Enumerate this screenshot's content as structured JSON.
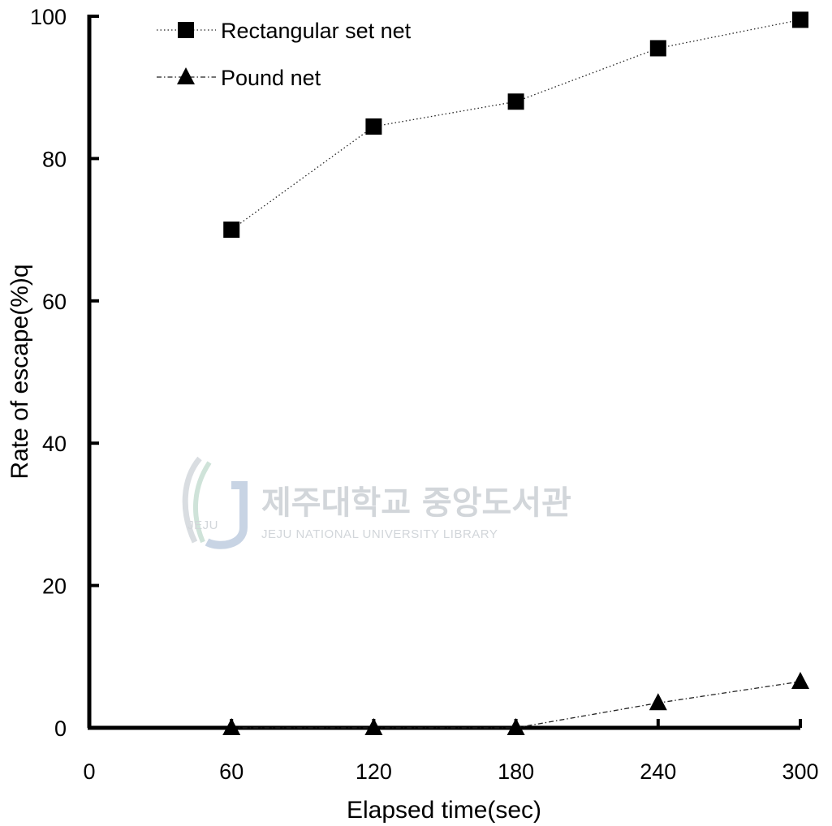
{
  "chart_data": {
    "type": "line",
    "xlabel": "Elapsed time(sec)",
    "ylabel": "Rate of escape(%)q",
    "x": [
      60,
      120,
      180,
      240,
      300
    ],
    "x_ticks": [
      "0",
      "60",
      "120",
      "180",
      "240",
      "300"
    ],
    "y_ticks": [
      "0",
      "20",
      "40",
      "60",
      "80",
      "100"
    ],
    "xlim": [
      0,
      300
    ],
    "ylim": [
      0,
      100
    ],
    "grid": false,
    "legend_position": "top-left",
    "series": [
      {
        "name": "Rectangular set net",
        "marker": "square",
        "line_style": "dotted",
        "values": [
          70,
          84.5,
          88,
          95.5,
          99.5
        ]
      },
      {
        "name": "Pound net",
        "marker": "triangle",
        "line_style": "dash-dot",
        "values": [
          0,
          0,
          0,
          3.5,
          6.5
        ]
      }
    ],
    "watermark": {
      "text_ko": "제주대학교 중앙도서관",
      "text_en": "JEJU NATIONAL UNIVERSITY LIBRARY",
      "logo_text": "JEJU"
    }
  }
}
